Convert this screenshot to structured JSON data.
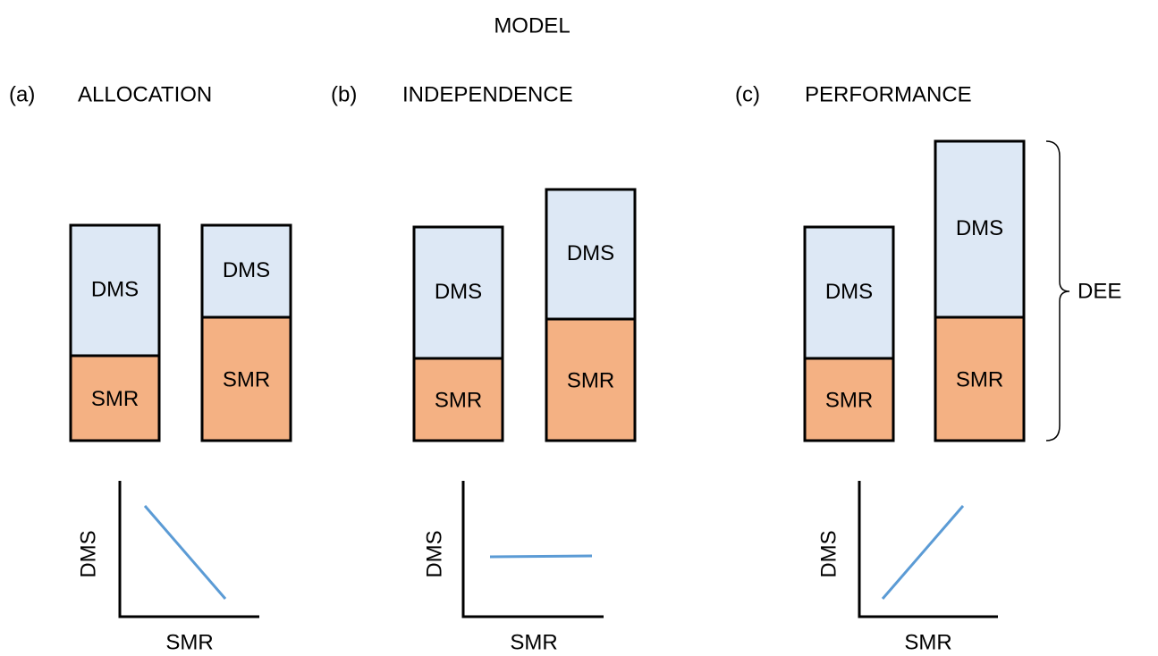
{
  "title": "MODEL",
  "panels": [
    {
      "letter": "(a)",
      "name": "ALLOCATION",
      "bars": [
        {
          "top": "DMS",
          "bottom": "SMR"
        },
        {
          "top": "DMS",
          "bottom": "SMR"
        }
      ],
      "plot": {
        "x_label": "SMR",
        "y_label": "DMS"
      }
    },
    {
      "letter": "(b)",
      "name": "INDEPENDENCE",
      "bars": [
        {
          "top": "DMS",
          "bottom": "SMR"
        },
        {
          "top": "DMS",
          "bottom": "SMR"
        }
      ],
      "plot": {
        "x_label": "SMR",
        "y_label": "DMS"
      }
    },
    {
      "letter": "(c)",
      "name": "PERFORMANCE",
      "bars": [
        {
          "top": "DMS",
          "bottom": "SMR"
        },
        {
          "top": "DMS",
          "bottom": "SMR"
        }
      ],
      "plot": {
        "x_label": "SMR",
        "y_label": "DMS"
      }
    }
  ],
  "brace_label": "DEE"
}
